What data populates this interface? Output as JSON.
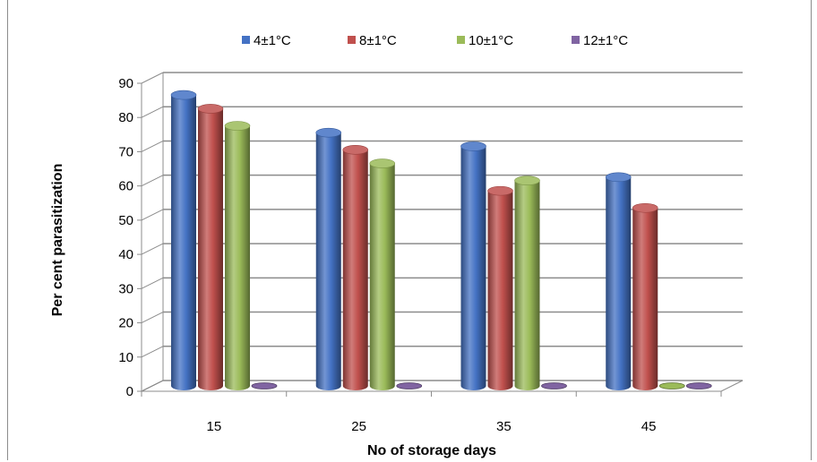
{
  "chart_data": {
    "type": "bar",
    "title": "",
    "xlabel": "No of storage days",
    "ylabel": "Per cent parasitization",
    "categories": [
      "15",
      "25",
      "35",
      "45"
    ],
    "series": [
      {
        "name": "4±1°C",
        "color": "#4472c4",
        "values": [
          85,
          74,
          70,
          61
        ]
      },
      {
        "name": "8±1°C",
        "color": "#c0504d",
        "values": [
          81,
          69,
          57,
          52
        ]
      },
      {
        "name": "10±1°C",
        "color": "#9bbb59",
        "values": [
          76,
          65,
          60,
          0
        ]
      },
      {
        "name": "12±1°C",
        "color": "#8064a2",
        "values": [
          0,
          0,
          0,
          0
        ]
      }
    ],
    "ylim": [
      0,
      90
    ],
    "yticks": [
      "0",
      "10",
      "20",
      "30",
      "40",
      "50",
      "60",
      "70",
      "80",
      "90"
    ],
    "grid": true,
    "style": "3d-cylinder",
    "legend_position": "top"
  }
}
